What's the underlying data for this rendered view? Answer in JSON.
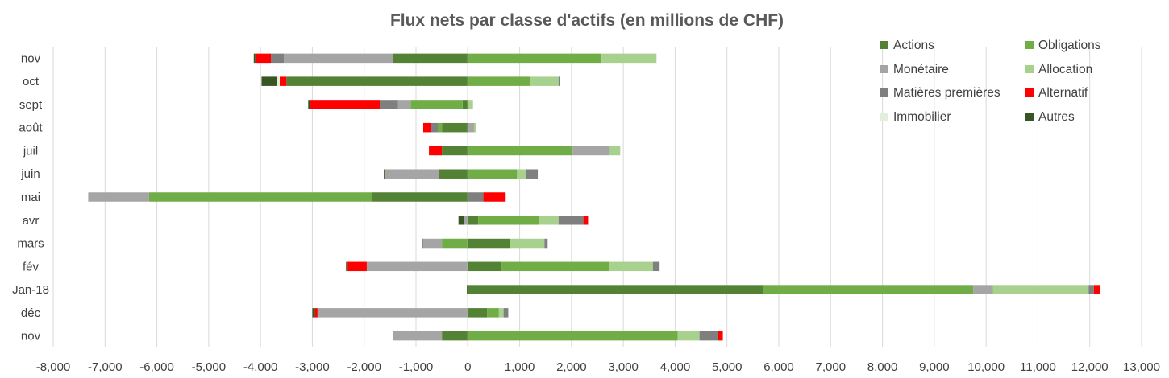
{
  "chart_data": {
    "type": "bar",
    "orientation": "horizontal",
    "stacked": true,
    "title": "Flux nets par classe d'actifs (en millions de CHF)",
    "xlabel": "",
    "ylabel": "",
    "xlim": [
      -8000,
      13000
    ],
    "xticks": [
      -8000,
      -7000,
      -6000,
      -5000,
      -4000,
      -3000,
      -2000,
      -1000,
      0,
      1000,
      2000,
      3000,
      4000,
      5000,
      6000,
      7000,
      8000,
      9000,
      10000,
      11000,
      12000,
      13000
    ],
    "xtick_labels": [
      "-8,000",
      "-7,000",
      "-6,000",
      "-5,000",
      "-4,000",
      "-3,000",
      "-2,000",
      "-1,000",
      "0",
      "1,000",
      "2,000",
      "3,000",
      "4,000",
      "5,000",
      "6,000",
      "7,000",
      "8,000",
      "9,000",
      "10,000",
      "11,000",
      "12,000",
      "13,000"
    ],
    "grid": "vertical",
    "legend_position": "top-right",
    "categories": [
      "nov",
      "oct",
      "sept",
      "août",
      "juil",
      "juin",
      "mai",
      "avr",
      "mars",
      "fév",
      "Jan-18",
      "déc",
      "nov"
    ],
    "series": [
      {
        "name": "Actions",
        "color": "#548235",
        "values": [
          -1450,
          -3500,
          -100,
          -500,
          -500,
          -550,
          -1850,
          200,
          820,
          650,
          5700,
          370,
          -500
        ]
      },
      {
        "name": "Obligations",
        "color": "#70AD47",
        "values": [
          2580,
          1200,
          -1000,
          -80,
          2020,
          950,
          -4300,
          1170,
          -500,
          2070,
          4050,
          230,
          4050
        ]
      },
      {
        "name": "Monétaire",
        "color": "#A5A5A5",
        "values": [
          -2100,
          0,
          -250,
          120,
          720,
          -1050,
          -1150,
          -80,
          -370,
          -1950,
          380,
          -2900,
          -950
        ]
      },
      {
        "name": "Allocation",
        "color": "#A9D18E",
        "values": [
          1060,
          550,
          100,
          40,
          200,
          180,
          0,
          380,
          660,
          850,
          1850,
          90,
          420
        ]
      },
      {
        "name": "Matières premières",
        "color": "#7F7F7F",
        "values": [
          -250,
          30,
          -350,
          -130,
          0,
          220,
          300,
          480,
          60,
          130,
          100,
          90,
          350
        ]
      },
      {
        "name": "Alternatif",
        "color": "#FF0000",
        "values": [
          -300,
          -130,
          -1350,
          -150,
          -250,
          0,
          430,
          90,
          0,
          -370,
          120,
          -50,
          100
        ]
      },
      {
        "name": "Immobilier",
        "color": "#E2EFDA",
        "values": [
          0,
          -50,
          0,
          0,
          0,
          0,
          0,
          0,
          0,
          0,
          0,
          0,
          0
        ]
      },
      {
        "name": "Autres",
        "color": "#375623",
        "values": [
          -30,
          -300,
          -30,
          0,
          0,
          -20,
          -20,
          -100,
          -20,
          -30,
          -20,
          -50,
          0
        ]
      }
    ]
  }
}
